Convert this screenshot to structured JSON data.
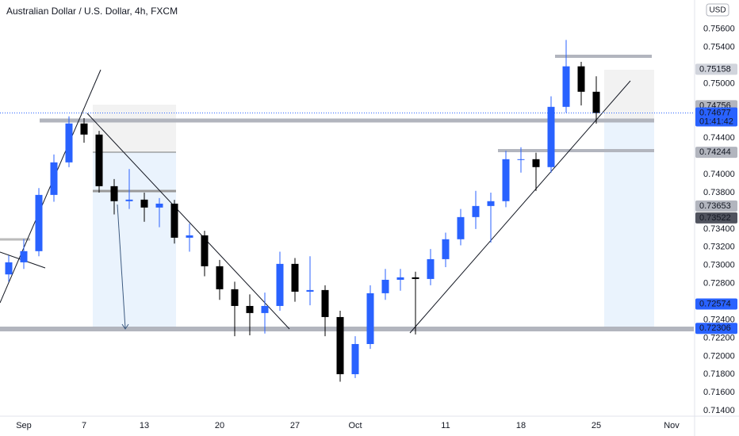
{
  "chart_data": {
    "type": "candlestick",
    "title": "Australian Dollar / U.S. Dollar, 4h, FXCM",
    "currency": "USD",
    "categories": [
      null,
      "Sep",
      null,
      null,
      null,
      "7",
      null,
      null,
      null,
      "13",
      null,
      null,
      null,
      null,
      "20",
      null,
      null,
      null,
      null,
      "27",
      null,
      null,
      null,
      "Oct",
      null,
      null,
      null,
      null,
      null,
      "11",
      null,
      null,
      null,
      null,
      "18",
      null,
      null,
      null,
      null,
      "25",
      null,
      null,
      null,
      null,
      "Nov",
      null
    ],
    "open": [
      0.729,
      0.73033,
      0.73156,
      0.73775,
      0.74133,
      0.74561,
      0.74439,
      0.73871,
      0.73706,
      0.73723,
      0.73636,
      0.73679,
      0.73304,
      0.7333,
      0.7299,
      0.72737,
      0.72553,
      0.72475,
      0.72553,
      0.73016,
      0.7271,
      0.72728,
      0.72431,
      0.71802,
      0.72134,
      0.72693,
      0.72841,
      0.72868,
      0.7285,
      0.73068,
      0.73287,
      0.73531,
      0.73653,
      0.73706,
      0.74168,
      0.74168,
      0.74081,
      0.74744,
      0.7519,
      0.7491,
      null,
      null,
      null,
      null,
      null,
      null
    ],
    "high": [
      0.7311,
      0.7329,
      0.7385,
      0.7422,
      0.7464,
      0.7462,
      0.7448,
      0.7395,
      0.7406,
      0.738,
      0.7374,
      0.7372,
      0.7346,
      0.7338,
      0.7306,
      0.7282,
      0.7268,
      0.727,
      0.7315,
      0.7308,
      0.731,
      0.7278,
      0.725,
      0.7222,
      0.7278,
      0.7296,
      0.7296,
      0.7293,
      0.7318,
      0.7336,
      0.7362,
      0.7382,
      0.738,
      0.7426,
      0.743,
      0.7424,
      0.7486,
      0.7548,
      0.7524,
      0.7508,
      null,
      null,
      null,
      null,
      null,
      null
    ],
    "low": [
      0.7282,
      0.7296,
      0.731,
      0.737,
      0.7408,
      0.7435,
      0.738,
      0.7356,
      0.7362,
      0.7348,
      0.7342,
      0.7324,
      0.7315,
      0.7288,
      0.7262,
      0.7222,
      0.7223,
      0.7225,
      0.725,
      0.726,
      0.7256,
      0.7222,
      0.7172,
      0.7176,
      0.7208,
      0.7262,
      0.7272,
      0.7224,
      0.7278,
      0.7298,
      0.7322,
      0.734,
      0.7325,
      0.7364,
      0.7402,
      0.7382,
      0.7402,
      0.7468,
      0.7476,
      0.7456,
      null,
      null,
      null,
      null,
      null,
      null
    ],
    "close": [
      0.73033,
      0.73156,
      0.73775,
      0.74133,
      0.74561,
      0.74439,
      0.73871,
      0.73706,
      0.73723,
      0.73636,
      0.73679,
      0.73304,
      0.7333,
      0.7299,
      0.72737,
      0.72553,
      0.72475,
      0.72553,
      0.73016,
      0.7271,
      0.72728,
      0.72431,
      0.71802,
      0.72134,
      0.72693,
      0.72841,
      0.72868,
      0.7285,
      0.73068,
      0.73287,
      0.73531,
      0.73653,
      0.73706,
      0.74168,
      0.74168,
      0.74081,
      0.74744,
      0.7519,
      0.7491,
      0.74677,
      null,
      null,
      null,
      null,
      null,
      null
    ],
    "up_color": "#2962ff",
    "down_color": "#000000",
    "ylim": [
      0.7134,
      0.7592
    ],
    "yticks": [
      {
        "value": 0.756,
        "label": "0.75600"
      },
      {
        "value": 0.754,
        "label": "0.75400"
      },
      {
        "value": 0.75,
        "label": "0.75000"
      },
      {
        "value": 0.744,
        "label": "0.74400"
      },
      {
        "value": 0.74,
        "label": "0.74000"
      },
      {
        "value": 0.738,
        "label": "0.73800"
      },
      {
        "value": 0.734,
        "label": "0.73400"
      },
      {
        "value": 0.732,
        "label": "0.73200"
      },
      {
        "value": 0.73,
        "label": "0.73000"
      },
      {
        "value": 0.728,
        "label": "0.72800"
      },
      {
        "value": 0.724,
        "label": "0.72400"
      },
      {
        "value": 0.722,
        "label": "0.72200"
      },
      {
        "value": 0.72,
        "label": "0.72000"
      },
      {
        "value": 0.718,
        "label": "0.71800"
      },
      {
        "value": 0.716,
        "label": "0.71600"
      },
      {
        "value": 0.714,
        "label": "0.71400"
      }
    ],
    "grid": false,
    "price_labels": [
      {
        "value": 0.75158,
        "label": "0.75158",
        "color": "#d1d4dc"
      },
      {
        "value": 0.74756,
        "label": "0.74756",
        "color": "#b2b5be"
      },
      {
        "value": 0.74244,
        "label": "0.74244",
        "color": "#b2b5be"
      },
      {
        "value": 0.73653,
        "label": "0.73653",
        "color": "#b2b5be"
      },
      {
        "value": 0.73522,
        "label": "0.73522",
        "color": "#50535e"
      },
      {
        "value": 0.72574,
        "label": "0.72574",
        "color": "#2962ff"
      },
      {
        "value": 0.72306,
        "label": "0.72306",
        "color": "#2962ff"
      },
      {
        "value": 0.74677,
        "label": "0.74677",
        "color": "#2962ff"
      }
    ],
    "countdown": "01:41:42"
  }
}
